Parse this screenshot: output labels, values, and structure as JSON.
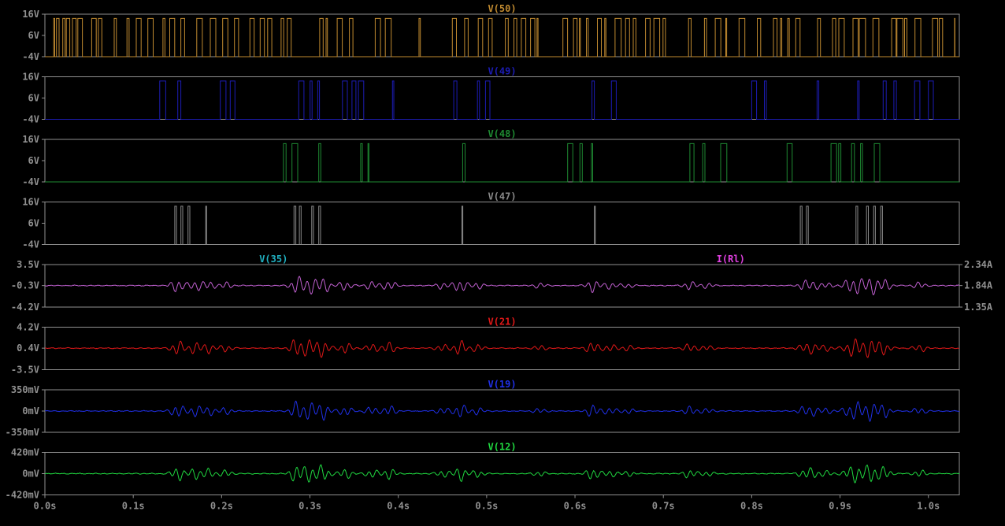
{
  "chart_data": {
    "type": "line",
    "x_ticks": [
      "0.0s",
      "0.1s",
      "0.2s",
      "0.3s",
      "0.4s",
      "0.5s",
      "0.6s",
      "0.7s",
      "0.8s",
      "0.9s",
      "1.0s"
    ],
    "x_tick_values": [
      0.0,
      0.1,
      0.2,
      0.3,
      0.4,
      0.5,
      0.6,
      0.7,
      0.8,
      0.9,
      1.0
    ],
    "xlim": [
      0.0,
      1.035
    ],
    "grid": false,
    "panes": [
      {
        "type": "digital",
        "title": "V(50)",
        "color": "#c08a30",
        "ylim": [
          -4,
          16
        ],
        "y_ticks": [
          "16V",
          "6V",
          "-4V"
        ],
        "y_tick_values": [
          16,
          6,
          -4
        ],
        "levels": [
          -4,
          14
        ],
        "density": 0.85,
        "active_ranges": [
          [
            0.01,
            1.03
          ]
        ],
        "seed": 50
      },
      {
        "type": "digital",
        "title": "V(49)",
        "color": "#1c1cb4",
        "ylim": [
          -4,
          16
        ],
        "y_ticks": [
          "16V",
          "6V",
          "-4V"
        ],
        "y_tick_values": [
          16,
          6,
          -4
        ],
        "levels": [
          -4,
          14
        ],
        "density": 0.6,
        "active_ranges": [
          [
            0.13,
            0.22
          ],
          [
            0.26,
            0.51
          ],
          [
            0.59,
            0.76
          ],
          [
            0.8,
            1.03
          ]
        ],
        "seed": 49
      },
      {
        "type": "digital",
        "title": "V(48)",
        "color": "#1e8a32",
        "ylim": [
          -4,
          16
        ],
        "y_ticks": [
          "16V",
          "6V",
          "-4V"
        ],
        "y_tick_values": [
          16,
          6,
          -4
        ],
        "levels": [
          -4,
          14
        ],
        "density": 0.5,
        "active_ranges": [
          [
            0.15,
            0.19
          ],
          [
            0.27,
            0.39
          ],
          [
            0.45,
            0.49
          ],
          [
            0.56,
            0.51
          ],
          [
            0.57,
            0.62
          ],
          [
            0.68,
            0.72
          ],
          [
            0.73,
            0.79
          ],
          [
            0.84,
            0.96
          ]
        ],
        "seed": 48
      },
      {
        "type": "digital",
        "title": "V(47)",
        "color": "#8a8a8a",
        "ylim": [
          -4,
          16
        ],
        "y_ticks": [
          "16V",
          "6V",
          "-4V"
        ],
        "y_tick_values": [
          16,
          6,
          -4
        ],
        "levels": [
          -4,
          14
        ],
        "pulses": [
          [
            0.147,
            0.149
          ],
          [
            0.154,
            0.156
          ],
          [
            0.162,
            0.164
          ],
          [
            0.182,
            0.183
          ],
          [
            0.282,
            0.284
          ],
          [
            0.288,
            0.29
          ],
          [
            0.302,
            0.304
          ],
          [
            0.31,
            0.312
          ],
          [
            0.472,
            0.473
          ],
          [
            0.622,
            0.623
          ],
          [
            0.855,
            0.857
          ],
          [
            0.862,
            0.864
          ],
          [
            0.918,
            0.92
          ],
          [
            0.93,
            0.932
          ],
          [
            0.938,
            0.94
          ],
          [
            0.946,
            0.948
          ]
        ]
      },
      {
        "type": "analog",
        "title": "V(35)",
        "title2": "I(Rl)",
        "color": "#c060d0",
        "title_color": "#20b0c0",
        "title2_color": "#e040e0",
        "ylim": [
          -4.2,
          3.5
        ],
        "y_ticks": [
          "3.5V",
          "-0.3V",
          "-4.2V"
        ],
        "y_tick_values": [
          3.5,
          -0.3,
          -4.2
        ],
        "y2_ticks": [
          "2.34A",
          "1.84A",
          "1.35A"
        ],
        "baseline": -0.3,
        "amp": 1.7,
        "seed": 35
      },
      {
        "type": "analog",
        "title": "V(21)",
        "color": "#e01818",
        "ylim": [
          -3.5,
          4.2
        ],
        "y_ticks": [
          "4.2V",
          "0.4V",
          "-3.5V"
        ],
        "y_tick_values": [
          4.2,
          0.4,
          -3.5
        ],
        "baseline": 0.4,
        "amp": 1.8,
        "seed": 21
      },
      {
        "type": "analog",
        "title": "V(19)",
        "color": "#2030e8",
        "ylim": [
          -350,
          350
        ],
        "y_ticks": [
          "350mV",
          "0mV",
          "-350mV"
        ],
        "y_tick_values": [
          350,
          0,
          -350
        ],
        "baseline": 0,
        "amp": 160,
        "seed": 19
      },
      {
        "type": "analog",
        "title": "V(12)",
        "color": "#20d840",
        "ylim": [
          -420,
          420
        ],
        "y_ticks": [
          "420mV",
          "0mV",
          "-420mV"
        ],
        "y_tick_values": [
          420,
          0,
          -420
        ],
        "baseline": 0,
        "amp": 190,
        "seed": 12
      }
    ],
    "bursts": [
      {
        "t": 0.15,
        "a": 0.8
      },
      {
        "t": 0.17,
        "a": 0.6
      },
      {
        "t": 0.185,
        "a": 0.5
      },
      {
        "t": 0.205,
        "a": 0.4
      },
      {
        "t": 0.285,
        "a": 1.0
      },
      {
        "t": 0.3,
        "a": 0.9
      },
      {
        "t": 0.315,
        "a": 0.9
      },
      {
        "t": 0.34,
        "a": 0.6
      },
      {
        "t": 0.37,
        "a": 0.5
      },
      {
        "t": 0.39,
        "a": 0.6
      },
      {
        "t": 0.45,
        "a": 0.4
      },
      {
        "t": 0.47,
        "a": 0.8
      },
      {
        "t": 0.49,
        "a": 0.4
      },
      {
        "t": 0.56,
        "a": 0.3
      },
      {
        "t": 0.62,
        "a": 0.7
      },
      {
        "t": 0.64,
        "a": 0.4
      },
      {
        "t": 0.66,
        "a": 0.3
      },
      {
        "t": 0.73,
        "a": 0.5
      },
      {
        "t": 0.75,
        "a": 0.3
      },
      {
        "t": 0.86,
        "a": 0.5
      },
      {
        "t": 0.87,
        "a": 0.4
      },
      {
        "t": 0.885,
        "a": 0.3
      },
      {
        "t": 0.91,
        "a": 0.6
      },
      {
        "t": 0.92,
        "a": 0.8
      },
      {
        "t": 0.935,
        "a": 1.0
      },
      {
        "t": 0.95,
        "a": 0.7
      },
      {
        "t": 0.99,
        "a": 0.4
      }
    ]
  }
}
